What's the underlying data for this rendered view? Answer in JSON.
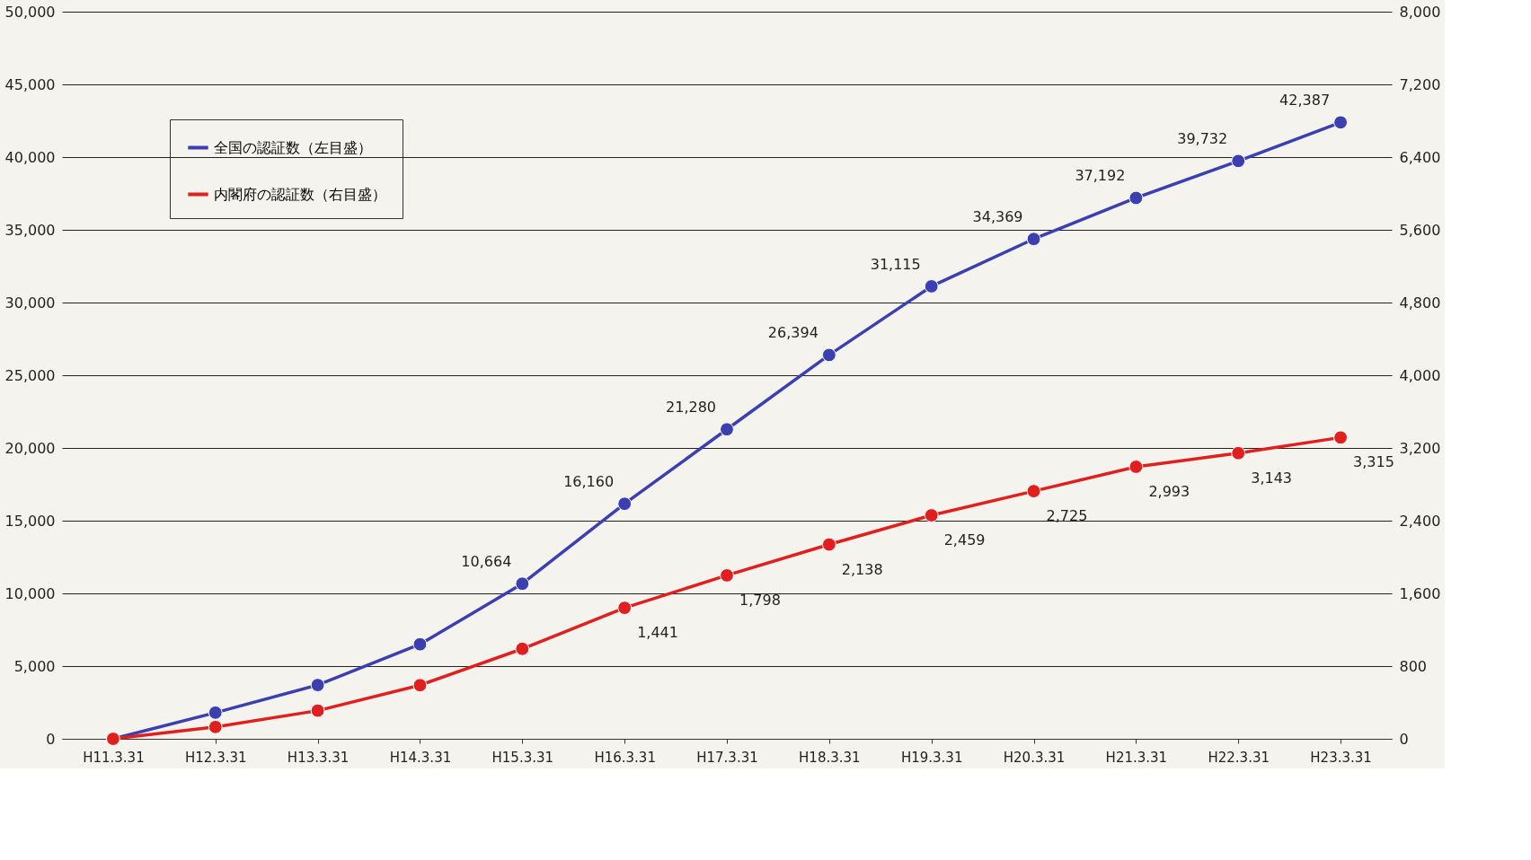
{
  "chart_data": {
    "type": "line",
    "categories": [
      "H11.3.31",
      "H12.3.31",
      "H13.3.31",
      "H14.3.31",
      "H15.3.31",
      "H16.3.31",
      "H17.3.31",
      "H18.3.31",
      "H19.3.31",
      "H20.3.31",
      "H21.3.31",
      "H22.3.31",
      "H23.3.31"
    ],
    "series": [
      {
        "name": "全国の認証数（左目盛）",
        "color": "#3b3fb0",
        "values": [
          0,
          1800,
          3700,
          6500,
          10664,
          16160,
          21280,
          26394,
          31115,
          34369,
          37192,
          39732,
          42387
        ],
        "value_labels": [
          null,
          null,
          null,
          null,
          "10,664",
          "16,160",
          "21,280",
          "26,394",
          "31,115",
          "34,369",
          "37,192",
          "39,732",
          "42,387"
        ]
      },
      {
        "name": "内閣府の認証数（右目盛）",
        "color": "#e0201f",
        "axis": "y2",
        "values": [
          0,
          130,
          310,
          590,
          990,
          1441,
          1798,
          2138,
          2459,
          2725,
          2993,
          3143,
          3315
        ],
        "value_labels": [
          null,
          null,
          null,
          null,
          null,
          "1,441",
          "1,798",
          "2,138",
          "2,459",
          "2,725",
          "2,993",
          "3,143",
          "3,315"
        ]
      }
    ],
    "ylim": [
      0,
      50000
    ],
    "yticks": [
      0,
      {
        "value": 5000,
        "label": "5,000"
      },
      {
        "value": 10000,
        "label": "10,000"
      },
      {
        "value": 15000,
        "label": "15,000"
      },
      {
        "value": 20000,
        "label": "20,000"
      },
      {
        "value": 25000,
        "label": "25,000"
      },
      {
        "value": 30000,
        "label": "30,000"
      },
      {
        "value": 35000,
        "label": "35,000"
      },
      {
        "value": 40000,
        "label": "40,000"
      },
      {
        "value": 45000,
        "label": "45,000"
      },
      {
        "value": 50000,
        "label": "50,000"
      }
    ],
    "y2lim": [
      0,
      8000
    ],
    "y2ticks": [
      0,
      800,
      {
        "value": 1600,
        "label": "1,600"
      },
      {
        "value": 2400,
        "label": "2,400"
      },
      {
        "value": 3200,
        "label": "3,200"
      },
      {
        "value": 4000,
        "label": "4,000"
      },
      {
        "value": 4800,
        "label": "4,800"
      },
      {
        "value": 5600,
        "label": "5,600"
      },
      {
        "value": 6400,
        "label": "6,400"
      },
      {
        "value": 7200,
        "label": "7,200"
      },
      {
        "value": 8000,
        "label": "8,000"
      }
    ],
    "grid": "y",
    "legend": "top left",
    "marker": "circle",
    "line_style": "solid"
  }
}
